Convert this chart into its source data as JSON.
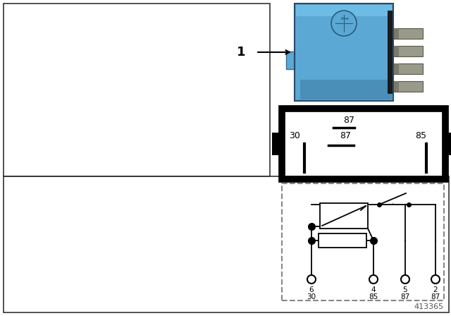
{
  "bg_color": "#ffffff",
  "fig_number": "413365",
  "relay_blue": "#5ba8d4",
  "relay_dark_blue": "#4a8fb8",
  "relay_shadow": "#3a6a8a",
  "pin_metal": "#9a9a8a",
  "pin_dark": "#6a6a5a"
}
